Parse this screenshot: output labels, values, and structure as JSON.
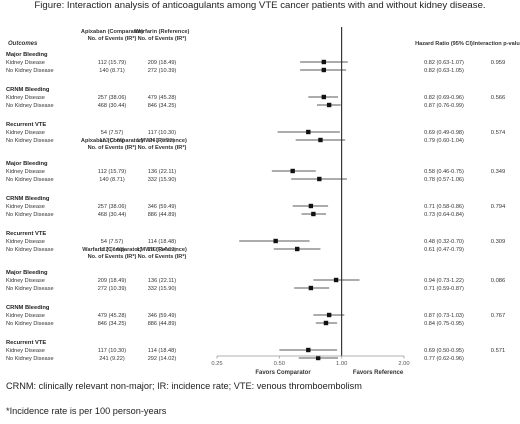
{
  "figure": {
    "title": "Figure: Interaction analysis of anticoagulants among VTE cancer patients with and without kidney disease.",
    "outcomes_label": "Outcomes",
    "hr_header": "Hazard Ratio (95% CI)",
    "pint_header": "Interaction p-value"
  },
  "footnotes": [
    "CRNM: clinically relevant non-major; IR: incidence rate; VTE: venous thromboembolism",
    "*Incidence rate is per 100 person-years"
  ],
  "chart_data": {
    "type": "forest",
    "x_scale": "log",
    "xlim": [
      0.25,
      2.0
    ],
    "reference_line": 1.0,
    "tick_labels": [
      "0.25",
      "0.50",
      "1.00",
      "2.00"
    ],
    "tick_values": [
      0.25,
      0.5,
      1.0,
      2.0
    ],
    "left_label": "Favors Comparator",
    "right_label": "Favors Reference",
    "comparisons": [
      {
        "comparator_header": "Apixaban (Comparator)",
        "comparator_subheader": "No. of Events (IR*)",
        "reference_header": "Warfarin (Reference)",
        "reference_subheader": "No. of Events (IR*)",
        "groups": [
          {
            "outcome": "Major Bleeding",
            "p_interaction": "0.959",
            "rows": [
              {
                "label": "Kidney Disease",
                "comparator": "112 (15.79)",
                "reference": "209 (18.49)",
                "hr_text": "0.82 (0.63-1.07)",
                "hr": 0.82,
                "lo": 0.63,
                "hi": 1.07
              },
              {
                "label": "No Kidney Disease",
                "comparator": "140 (8.71)",
                "reference": "272 (10.39)",
                "hr_text": "0.82 (0.63-1.05)",
                "hr": 0.82,
                "lo": 0.63,
                "hi": 1.05
              }
            ]
          },
          {
            "outcome": "CRNM Bleeding",
            "p_interaction": "0.566",
            "rows": [
              {
                "label": "Kidney Disease",
                "comparator": "257 (38.06)",
                "reference": "479 (45.28)",
                "hr_text": "0.82 (0.69-0.96)",
                "hr": 0.82,
                "lo": 0.69,
                "hi": 0.96
              },
              {
                "label": "No Kidney Disease",
                "comparator": "468 (30.44)",
                "reference": "846 (34.25)",
                "hr_text": "0.87 (0.76-0.99)",
                "hr": 0.87,
                "lo": 0.76,
                "hi": 0.99
              }
            ]
          },
          {
            "outcome": "Recurrent VTE",
            "p_interaction": "0.574",
            "rows": [
              {
                "label": "Kidney Disease",
                "comparator": "54 (7.57)",
                "reference": "117 (10.30)",
                "hr_text": "0.69 (0.49-0.98)",
                "hr": 0.69,
                "lo": 0.49,
                "hi": 0.98
              },
              {
                "label": "No Kidney Disease",
                "comparator": "122 (7.60)",
                "reference": "241 (9.22)",
                "hr_text": "0.79 (0.60-1.04)",
                "hr": 0.79,
                "lo": 0.6,
                "hi": 1.04
              }
            ]
          }
        ]
      },
      {
        "comparator_header": "Apixaban (Comparator)",
        "comparator_subheader": "No. of Events (IR*)",
        "reference_header": "LMWH (Reference)",
        "reference_subheader": "No. of Events (IR*)",
        "groups": [
          {
            "outcome": "Major Bleeding",
            "p_interaction": "0.349",
            "rows": [
              {
                "label": "Kidney Disease",
                "comparator": "112 (15.79)",
                "reference": "136 (22.11)",
                "hr_text": "0.58 (0.46-0.75)",
                "hr": 0.58,
                "lo": 0.46,
                "hi": 0.75
              },
              {
                "label": "No Kidney Disease",
                "comparator": "140 (8.71)",
                "reference": "332 (15.90)",
                "hr_text": "0.78 (0.57-1.06)",
                "hr": 0.78,
                "lo": 0.57,
                "hi": 1.06
              }
            ]
          },
          {
            "outcome": "CRNM Bleeding",
            "p_interaction": "0.794",
            "rows": [
              {
                "label": "Kidney Disease",
                "comparator": "257 (38.06)",
                "reference": "346 (59.49)",
                "hr_text": "0.71 (0.58-0.86)",
                "hr": 0.71,
                "lo": 0.58,
                "hi": 0.86
              },
              {
                "label": "No Kidney Disease",
                "comparator": "468 (30.44)",
                "reference": "886 (44.89)",
                "hr_text": "0.73 (0.64-0.84)",
                "hr": 0.73,
                "lo": 0.64,
                "hi": 0.84
              }
            ]
          },
          {
            "outcome": "Recurrent VTE",
            "p_interaction": "0.309",
            "rows": [
              {
                "label": "Kidney Disease",
                "comparator": "54 (7.57)",
                "reference": "114 (18.48)",
                "hr_text": "0.48 (0.32-0.70)",
                "hr": 0.48,
                "lo": 0.32,
                "hi": 0.7
              },
              {
                "label": "No Kidney Disease",
                "comparator": "122 (7.60)",
                "reference": "292 (14.02)",
                "hr_text": "0.61 (0.47-0.79)",
                "hr": 0.61,
                "lo": 0.47,
                "hi": 0.79
              }
            ]
          }
        ]
      },
      {
        "comparator_header": "Warfarin (Comparator)",
        "comparator_subheader": "No. of Events (IR*)",
        "reference_header": "LMWH (Reference)",
        "reference_subheader": "No. of Events (IR*)",
        "groups": [
          {
            "outcome": "Major Bleeding",
            "p_interaction": "0.086",
            "rows": [
              {
                "label": "Kidney Disease",
                "comparator": "209 (18.49)",
                "reference": "136 (22.11)",
                "hr_text": "0.94 (0.73-1.22)",
                "hr": 0.94,
                "lo": 0.73,
                "hi": 1.22
              },
              {
                "label": "No Kidney Disease",
                "comparator": "272 (10.39)",
                "reference": "332 (15.90)",
                "hr_text": "0.71 (0.59-0.87)",
                "hr": 0.71,
                "lo": 0.59,
                "hi": 0.87
              }
            ]
          },
          {
            "outcome": "CRNM Bleeding",
            "p_interaction": "0.767",
            "rows": [
              {
                "label": "Kidney Disease",
                "comparator": "479 (45.28)",
                "reference": "346 (59.49)",
                "hr_text": "0.87 (0.73-1.03)",
                "hr": 0.87,
                "lo": 0.73,
                "hi": 1.03
              },
              {
                "label": "No Kidney Disease",
                "comparator": "846 (34.25)",
                "reference": "886 (44.89)",
                "hr_text": "0.84 (0.75-0.95)",
                "hr": 0.84,
                "lo": 0.75,
                "hi": 0.95
              }
            ]
          },
          {
            "outcome": "Recurrent VTE",
            "p_interaction": "0.571",
            "rows": [
              {
                "label": "Kidney Disease",
                "comparator": "117 (10.30)",
                "reference": "114 (18.48)",
                "hr_text": "0.69 (0.50-0.95)",
                "hr": 0.69,
                "lo": 0.5,
                "hi": 0.95
              },
              {
                "label": "No Kidney Disease",
                "comparator": "241 (9.22)",
                "reference": "292 (14.02)",
                "hr_text": "0.77 (0.62-0.96)",
                "hr": 0.77,
                "lo": 0.62,
                "hi": 0.96
              }
            ]
          }
        ]
      }
    ]
  }
}
